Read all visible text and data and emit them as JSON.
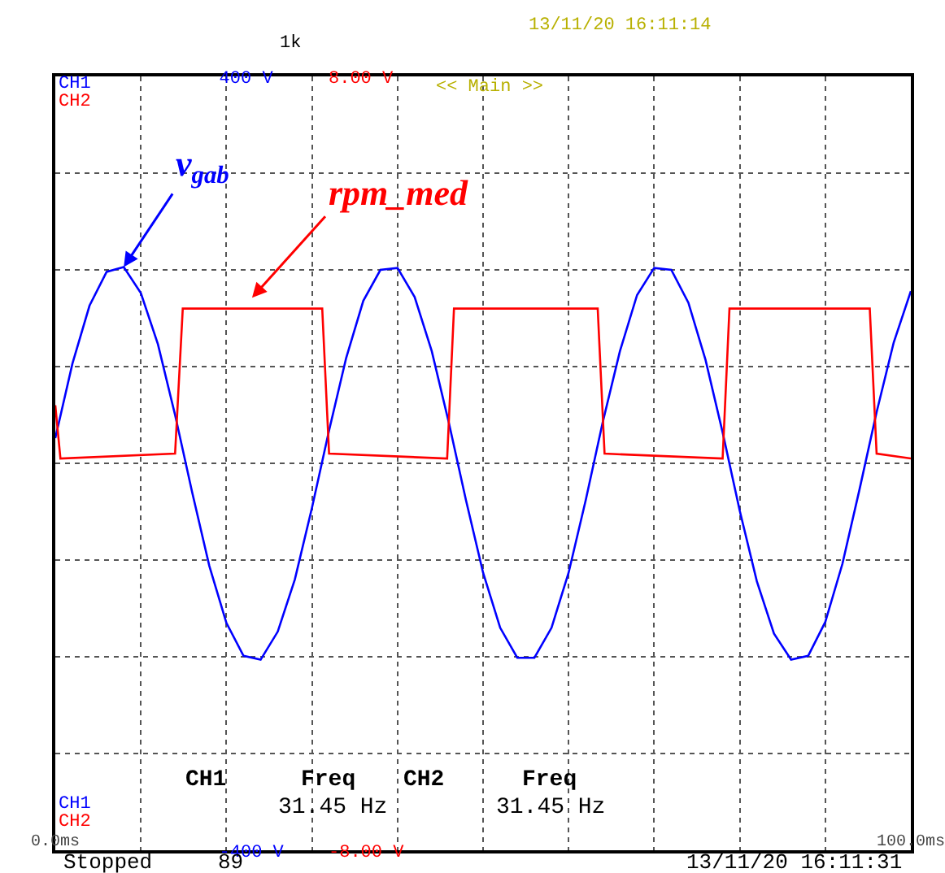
{
  "chart_data": {
    "type": "line",
    "annotations": [
      "13/11/20 16:11:14",
      "1k",
      "<< Main >>",
      "CH1",
      "CH2",
      "CH1",
      "Freq",
      "CH2",
      "Freq",
      "31.45 Hz",
      "31.45 Hz",
      "CH1",
      "CH2",
      "Stopped",
      "89",
      "13/11/20 16:11:31",
      {
        "text": "v$_{gab}$",
        "x": 8,
        "y": 203
      },
      "rpm_med"
    ],
    "x": [
      0,
      2,
      4,
      6,
      8,
      10,
      12,
      14,
      16,
      18,
      20,
      22,
      24,
      26,
      28,
      30,
      32,
      34,
      36,
      38,
      40,
      42,
      44,
      46,
      48,
      50,
      52,
      54,
      56,
      58,
      60,
      62,
      64,
      66,
      68,
      70,
      72,
      74,
      76,
      78,
      80,
      82,
      84,
      86,
      88,
      90,
      92,
      94,
      96,
      98,
      100
    ],
    "series": [
      {
        "color": "#0000ff",
        "values": [
          26,
          103,
          163,
          198,
          203,
          176,
          123,
          50,
          -30,
          -106,
          -165,
          -199,
          -203,
          -174,
          -120,
          -46,
          34,
          109,
          168,
          200,
          202,
          172,
          116,
          42,
          -38,
          -113,
          -170,
          -201,
          -201,
          -170,
          -113,
          -38,
          43,
          116,
          174,
          202,
          200,
          166,
          107,
          32,
          -49,
          -122,
          -176,
          -203,
          -199,
          -164,
          -104,
          -27,
          53,
          125,
          178
        ]
      },
      {
        "color": "#ff0000",
        "axis": "y2",
        "x": [
          0,
          0.6,
          14.0,
          14.9,
          31.2,
          32.0,
          45.8,
          46.6,
          63.4,
          64.2,
          78.0,
          78.8,
          95.2,
          96.0,
          100
        ],
        "values": [
          1.2,
          0.1,
          0.2,
          3.2,
          3.2,
          0.2,
          0.1,
          3.2,
          3.2,
          0.2,
          0.1,
          3.2,
          3.2,
          0.2,
          0.1
        ]
      }
    ],
    "xlim": [
      0,
      100
    ],
    "xticks": [
      {
        "value": 0,
        "label": "0.0ms"
      },
      {
        "value": 10,
        "label": null
      },
      {
        "value": 20,
        "label": null
      },
      {
        "value": 30,
        "label": null
      },
      {
        "value": 40,
        "label": null
      },
      {
        "value": 50,
        "label": null
      },
      {
        "value": 60,
        "label": null
      },
      {
        "value": 70,
        "label": null
      },
      {
        "value": 80,
        "label": null
      },
      {
        "value": 90,
        "label": null
      },
      {
        "value": 100,
        "label": "100.0ms"
      }
    ],
    "ylim": [
      -400,
      400
    ],
    "yticks": [
      {
        "value": -400,
        "label": "-400 V"
      },
      {
        "value": -300,
        "label": null
      },
      {
        "value": -200,
        "label": null
      },
      {
        "value": -100,
        "label": null
      },
      {
        "value": 0,
        "label": null
      },
      {
        "value": 100,
        "label": null
      },
      {
        "value": 200,
        "label": null
      },
      {
        "value": 300,
        "label": null
      },
      {
        "value": 400,
        "label": "400 V"
      }
    ],
    "y2lim": [
      -8,
      8
    ],
    "y2ticks": [
      {
        "value": -8,
        "label": "-8.00 V"
      },
      {
        "value": 8,
        "label": "8.00 V"
      }
    ],
    "grid": true,
    "marker": "none",
    "line_style": "solid"
  }
}
